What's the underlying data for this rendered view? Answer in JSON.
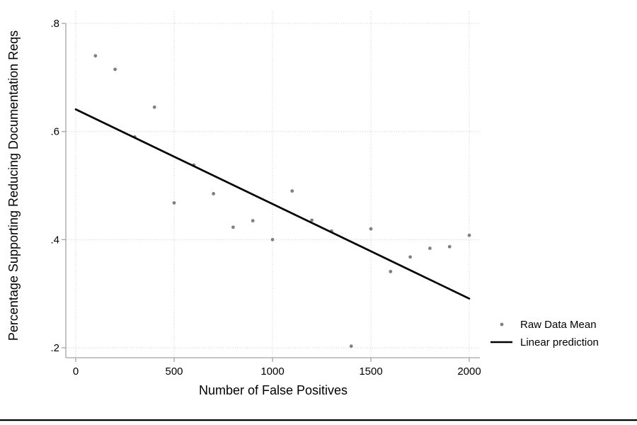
{
  "page": {
    "background": "#ffffff",
    "bottom_rule_color": "#000000"
  },
  "chart_data": {
    "type": "scatter",
    "title": "",
    "xlabel": "Number of False Positives",
    "ylabel": "Percentage Supporting Reducing Documentation Reqs",
    "xlim": [
      0,
      2000
    ],
    "ylim": [
      0.2,
      0.8
    ],
    "xticks": {
      "values": [
        0,
        500,
        1000,
        1500,
        2000
      ],
      "labels": [
        "0",
        "500",
        "1000",
        "1500",
        "2000"
      ]
    },
    "yticks": {
      "values": [
        0.2,
        0.4,
        0.6,
        0.8
      ],
      "labels": [
        ".2",
        ".4",
        ".6",
        ".8"
      ]
    },
    "grid": {
      "show": true,
      "style": "dotted",
      "color": "#c9c9c9"
    },
    "axis_color": "#a3a3a3",
    "legend": {
      "position": "outside-right-bottom",
      "entries": [
        "Raw Data Mean",
        "Linear prediction"
      ]
    },
    "series": [
      {
        "name": "Raw Data Mean",
        "type": "scatter",
        "marker": "circle",
        "color": "#808080",
        "x": [
          100,
          200,
          300,
          400,
          500,
          600,
          700,
          800,
          900,
          1000,
          1100,
          1200,
          1300,
          1400,
          1500,
          1600,
          1700,
          1800,
          1900,
          2000
        ],
        "y": [
          0.74,
          0.715,
          0.59,
          0.645,
          0.468,
          0.538,
          0.485,
          0.423,
          0.435,
          0.4,
          0.49,
          0.436,
          0.416,
          0.203,
          0.42,
          0.341,
          0.368,
          0.384,
          0.387,
          0.408
        ]
      },
      {
        "name": "Linear prediction",
        "type": "line",
        "color": "#000000",
        "x": [
          0,
          2000
        ],
        "y": [
          0.641,
          0.291
        ]
      }
    ]
  }
}
